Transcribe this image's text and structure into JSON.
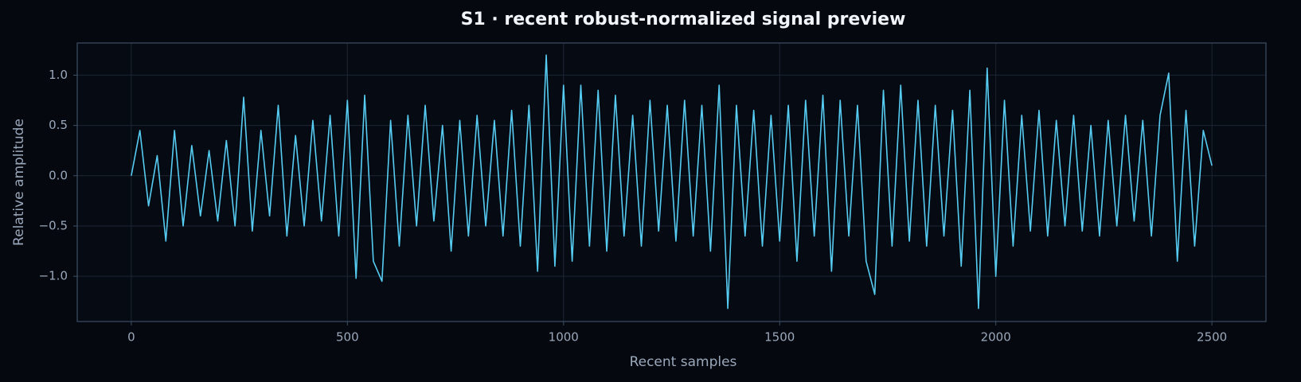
{
  "chart_data": {
    "type": "line",
    "title": "S1 · recent robust-normalized signal preview",
    "xlabel": "Recent samples",
    "ylabel": "Relative amplitude",
    "x": [
      0,
      20,
      40,
      60,
      80,
      100,
      120,
      140,
      160,
      180,
      200,
      220,
      240,
      260,
      280,
      300,
      320,
      340,
      360,
      380,
      400,
      420,
      440,
      460,
      480,
      500,
      520,
      540,
      560,
      580,
      600,
      620,
      640,
      660,
      680,
      700,
      720,
      740,
      760,
      780,
      800,
      820,
      840,
      860,
      880,
      900,
      920,
      940,
      960,
      980,
      1000,
      1020,
      1040,
      1060,
      1080,
      1100,
      1120,
      1140,
      1160,
      1180,
      1200,
      1220,
      1240,
      1260,
      1280,
      1300,
      1320,
      1340,
      1360,
      1380,
      1400,
      1420,
      1440,
      1460,
      1480,
      1500,
      1520,
      1540,
      1560,
      1580,
      1600,
      1620,
      1640,
      1660,
      1680,
      1700,
      1720,
      1740,
      1760,
      1780,
      1800,
      1820,
      1840,
      1860,
      1880,
      1900,
      1920,
      1940,
      1960,
      1980,
      2000,
      2020,
      2040,
      2060,
      2080,
      2100,
      2120,
      2140,
      2160,
      2180,
      2200,
      2220,
      2240,
      2260,
      2280,
      2300,
      2320,
      2340,
      2360,
      2380,
      2400,
      2420,
      2440,
      2460,
      2480,
      2500
    ],
    "values": [
      0.0,
      0.45,
      -0.3,
      0.2,
      -0.65,
      0.45,
      -0.5,
      0.3,
      -0.4,
      0.25,
      -0.45,
      0.35,
      -0.5,
      0.78,
      -0.55,
      0.45,
      -0.4,
      0.7,
      -0.6,
      0.4,
      -0.5,
      0.55,
      -0.45,
      0.6,
      -0.6,
      0.75,
      -1.02,
      0.8,
      -0.85,
      -1.05,
      0.55,
      -0.7,
      0.6,
      -0.5,
      0.7,
      -0.45,
      0.5,
      -0.75,
      0.55,
      -0.6,
      0.6,
      -0.5,
      0.55,
      -0.6,
      0.65,
      -0.7,
      0.7,
      -0.95,
      1.2,
      -0.9,
      0.9,
      -0.85,
      0.9,
      -0.7,
      0.85,
      -0.75,
      0.8,
      -0.6,
      0.6,
      -0.7,
      0.75,
      -0.55,
      0.7,
      -0.65,
      0.75,
      -0.6,
      0.7,
      -0.75,
      0.9,
      -1.32,
      0.7,
      -0.6,
      0.65,
      -0.7,
      0.6,
      -0.65,
      0.7,
      -0.85,
      0.75,
      -0.6,
      0.8,
      -0.95,
      0.75,
      -0.6,
      0.7,
      -0.85,
      -1.18,
      0.85,
      -0.7,
      0.9,
      -0.65,
      0.75,
      -0.7,
      0.7,
      -0.6,
      0.65,
      -0.9,
      0.85,
      -1.32,
      1.07,
      -1.0,
      0.75,
      -0.7,
      0.6,
      -0.55,
      0.65,
      -0.6,
      0.55,
      -0.5,
      0.6,
      -0.55,
      0.5,
      -0.6,
      0.55,
      -0.5,
      0.6,
      -0.45,
      0.55,
      -0.6,
      0.6,
      1.02,
      -0.85,
      0.65,
      -0.7,
      0.45,
      0.1
    ],
    "color": "#56ccf2",
    "xlim": [
      -125,
      2625
    ],
    "ylim": [
      -1.45,
      1.32
    ],
    "xticks": [
      0,
      500,
      1000,
      1500,
      2000,
      2500
    ],
    "yticks": [
      {
        "value": -1,
        "label": "−1.0"
      },
      {
        "value": -0.5,
        "label": "−0.5"
      },
      {
        "value": 0,
        "label": "0.0"
      },
      {
        "value": 0.5,
        "label": "0.5"
      },
      {
        "value": 1,
        "label": "1.0"
      }
    ],
    "grid": true
  }
}
